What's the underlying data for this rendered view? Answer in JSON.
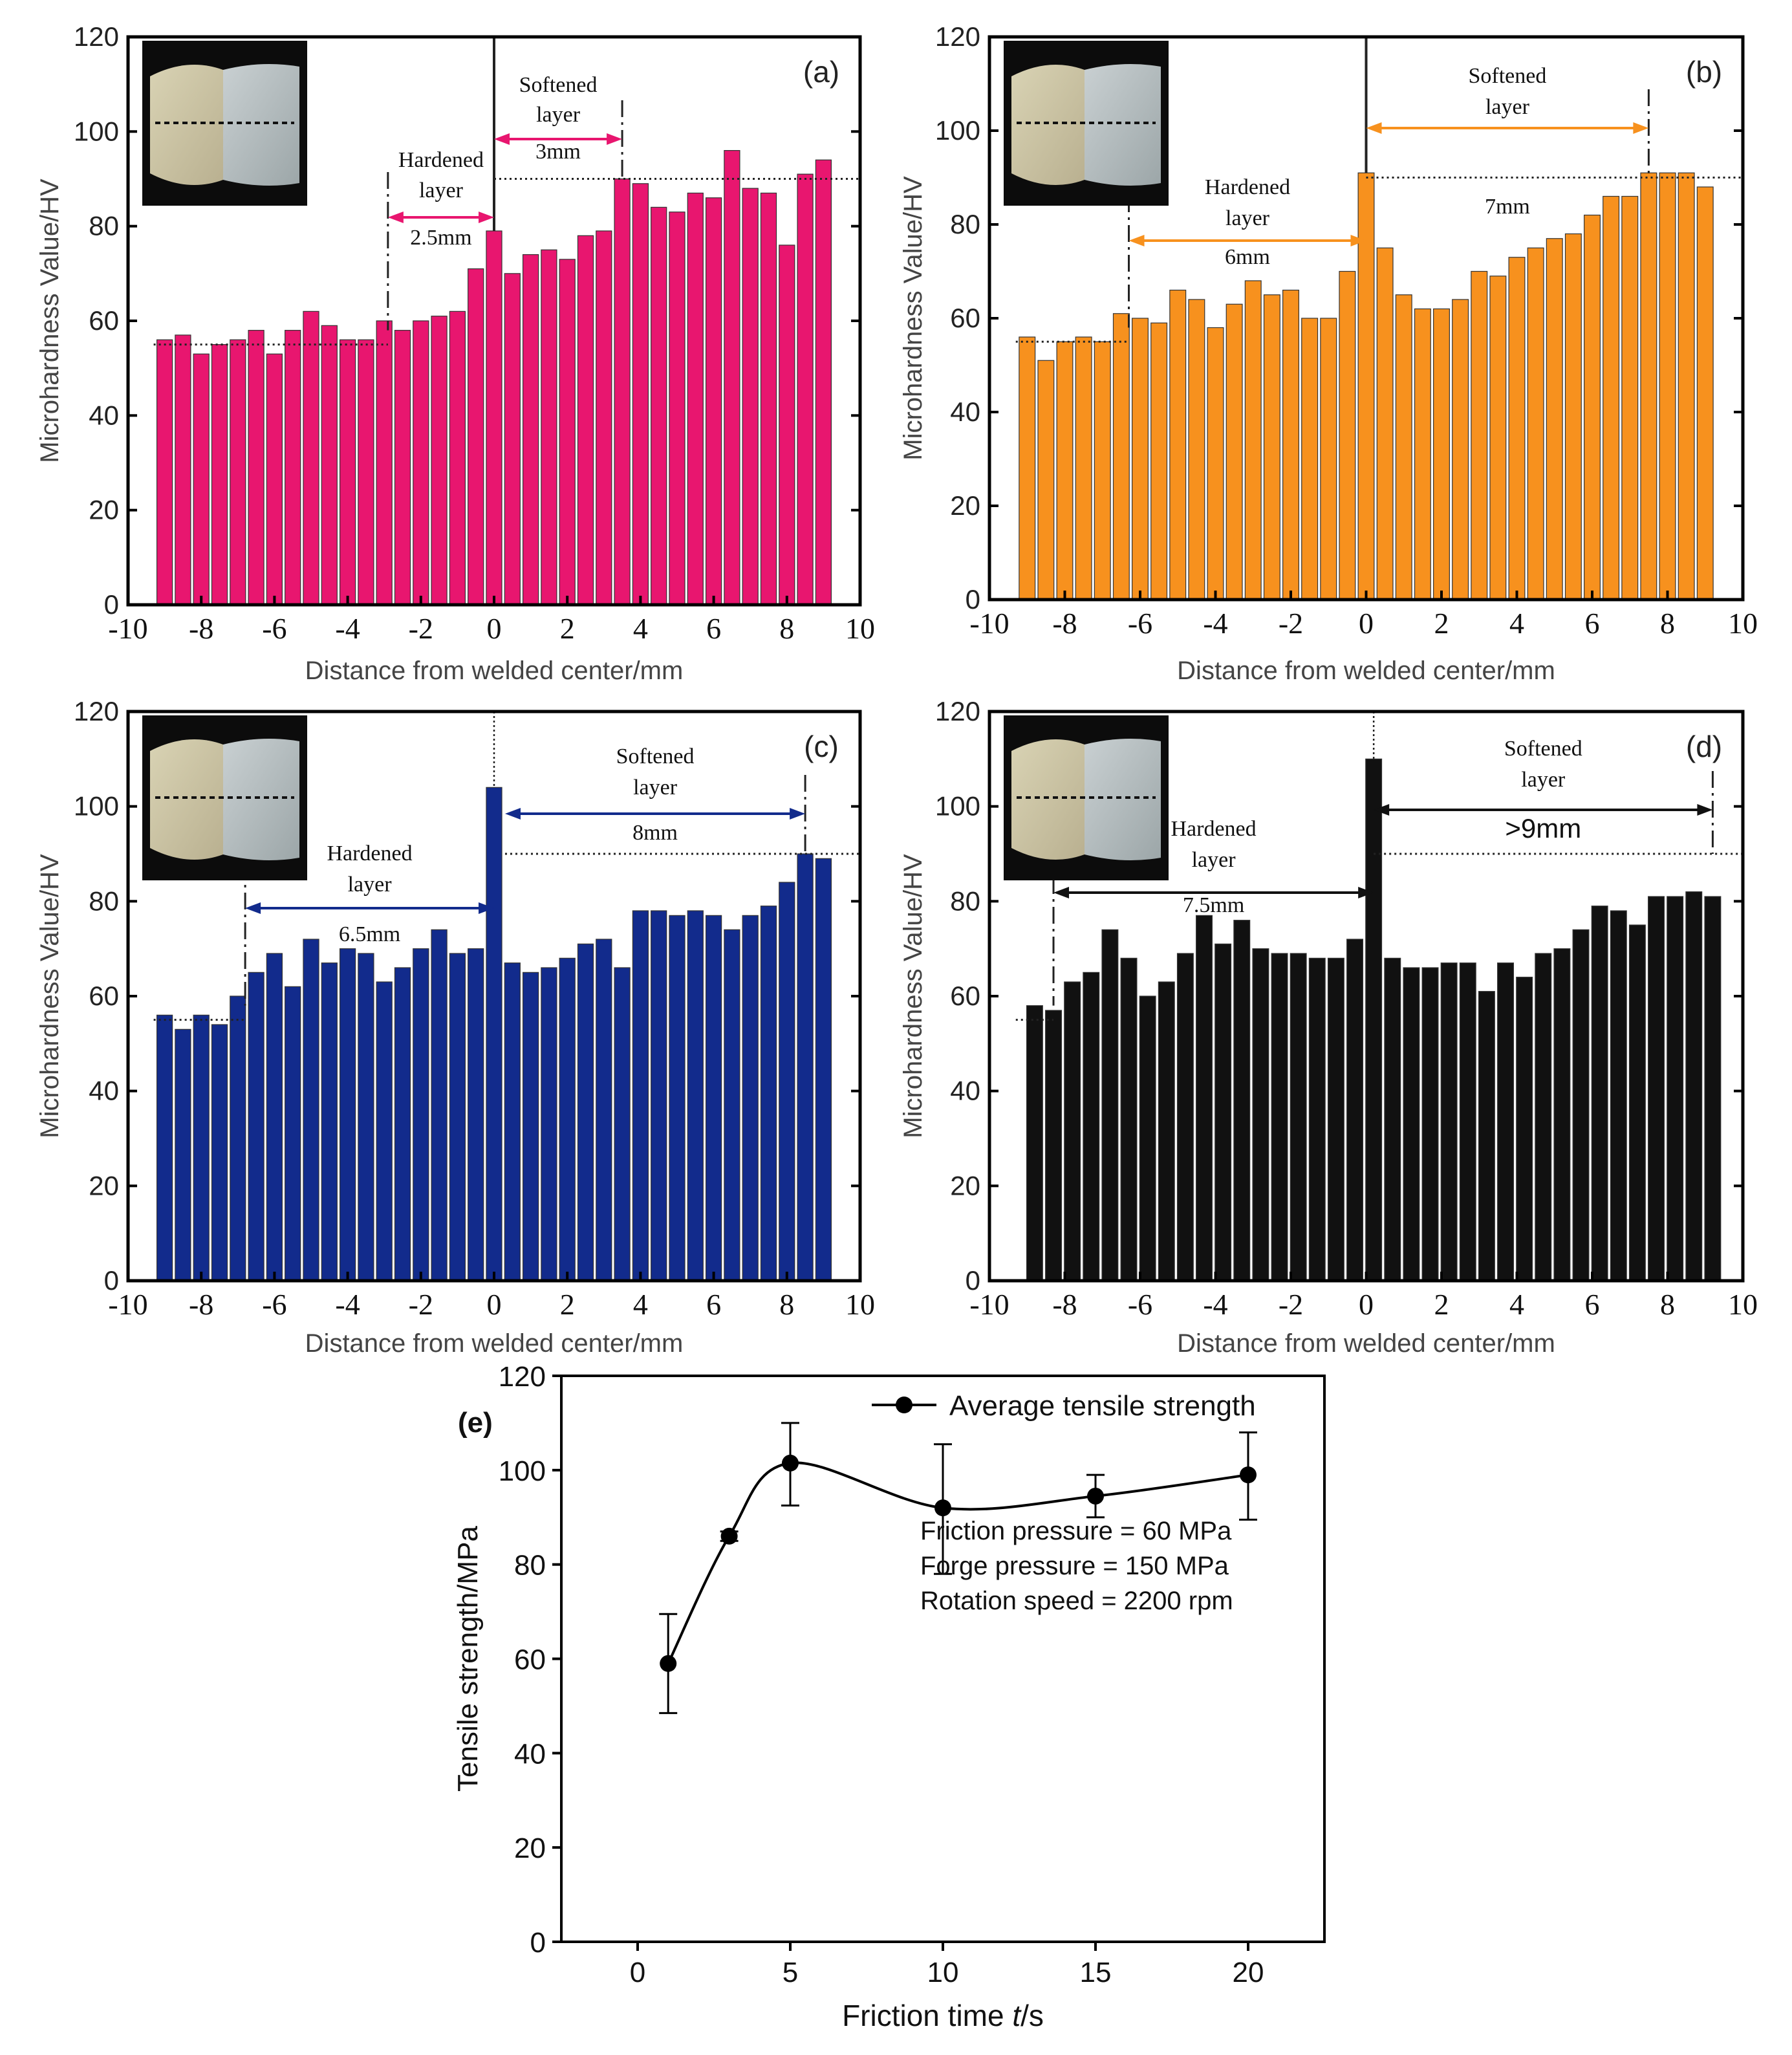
{
  "chart_data": [
    {
      "id": "a",
      "type": "bar",
      "panel_label": "(a)",
      "color": "#e8166f",
      "xlabel": "Distance from welded center/mm",
      "ylabel": "Microhardness Value/HV",
      "xlim": [
        -10,
        10
      ],
      "ylim": [
        0,
        120
      ],
      "xticks": [
        "-10",
        "-8",
        "-6",
        "-4",
        "-2",
        "0",
        "2",
        "4",
        "6",
        "8",
        "10"
      ],
      "yticks": [
        "0",
        "20",
        "40",
        "60",
        "80",
        "100",
        "120"
      ],
      "x": [
        -9,
        -8.5,
        -8,
        -7.5,
        -7,
        -6.5,
        -6,
        -5.5,
        -5,
        -4.5,
        -4,
        -3.5,
        -3,
        -2.5,
        -2,
        -1.5,
        -1,
        -0.5,
        0,
        0.5,
        1,
        1.5,
        2,
        2.5,
        3,
        3.5,
        4,
        4.5,
        5,
        5.5,
        6,
        6.5,
        7,
        7.5,
        8,
        8.5,
        9
      ],
      "values": [
        56,
        57,
        53,
        55,
        56,
        58,
        53,
        58,
        62,
        59,
        56,
        56,
        60,
        58,
        60,
        61,
        62,
        71,
        79,
        70,
        74,
        75,
        73,
        78,
        79,
        90,
        89,
        84,
        83,
        87,
        86,
        96,
        88,
        87,
        76,
        91,
        94
      ],
      "base_line": 55,
      "top_line": 90,
      "hardened": {
        "label1": "Hardened",
        "label2": "layer",
        "width_label": "2.5mm",
        "from": -2.9,
        "to": 0
      },
      "softened": {
        "label1": "Softened",
        "label2": "layer",
        "width_label": "3mm",
        "from": 0,
        "to": 3.5
      }
    },
    {
      "id": "b",
      "type": "bar",
      "panel_label": "(b)",
      "color": "#f7911e",
      "xlabel": "Distance from welded center/mm",
      "ylabel": "Microhardness Value/HV",
      "xlim": [
        -10,
        10
      ],
      "ylim": [
        0,
        120
      ],
      "xticks": [
        "-10",
        "-8",
        "-6",
        "-4",
        "-2",
        "0",
        "2",
        "4",
        "6",
        "8",
        "10"
      ],
      "yticks": [
        "0",
        "20",
        "40",
        "60",
        "80",
        "100",
        "120"
      ],
      "x": [
        -9,
        -8.5,
        -8,
        -7.5,
        -7,
        -6.5,
        -6,
        -5.5,
        -5,
        -4.5,
        -4,
        -3.5,
        -3,
        -2.5,
        -2,
        -1.5,
        -1,
        -0.5,
        0,
        0.5,
        1,
        1.5,
        2,
        2.5,
        3,
        3.5,
        4,
        4.5,
        5,
        5.5,
        6,
        6.5,
        7,
        7.5,
        8,
        8.5,
        9
      ],
      "values": [
        56,
        51,
        55,
        56,
        55,
        61,
        60,
        59,
        66,
        64,
        58,
        63,
        68,
        65,
        66,
        60,
        60,
        70,
        91,
        75,
        65,
        62,
        62,
        64,
        70,
        69,
        73,
        75,
        77,
        78,
        82,
        86,
        86,
        91,
        91,
        91,
        88
      ],
      "base_line": 55,
      "top_line": 90,
      "hardened": {
        "label1": "Hardened",
        "label2": "layer",
        "width_label": "6mm",
        "from": -6.3,
        "to": 0
      },
      "softened": {
        "label1": "Softened",
        "label2": "layer",
        "width_label": "7mm",
        "from": 0,
        "to": 7.5
      }
    },
    {
      "id": "c",
      "type": "bar",
      "panel_label": "(c)",
      "color": "#122b8c",
      "xlabel": "Distance from welded center/mm",
      "ylabel": "Microhardness Value/HV",
      "xlim": [
        -10,
        10
      ],
      "ylim": [
        0,
        120
      ],
      "xticks": [
        "-10",
        "-8",
        "-6",
        "-4",
        "-2",
        "0",
        "2",
        "4",
        "6",
        "8",
        "10"
      ],
      "yticks": [
        "0",
        "20",
        "40",
        "60",
        "80",
        "100",
        "120"
      ],
      "x": [
        -9,
        -8.5,
        -8,
        -7.5,
        -7,
        -6.5,
        -6,
        -5.5,
        -5,
        -4.5,
        -4,
        -3.5,
        -3,
        -2.5,
        -2,
        -1.5,
        -1,
        -0.5,
        0,
        0.5,
        1,
        1.5,
        2,
        2.5,
        3,
        3.5,
        4,
        4.5,
        5,
        5.5,
        6,
        6.5,
        7,
        7.5,
        8,
        8.5,
        9
      ],
      "values": [
        56,
        53,
        56,
        54,
        60,
        65,
        69,
        62,
        72,
        67,
        70,
        69,
        63,
        66,
        70,
        74,
        69,
        70,
        104,
        67,
        65,
        66,
        68,
        71,
        72,
        66,
        78,
        78,
        77,
        78,
        77,
        74,
        77,
        79,
        84,
        90,
        89
      ],
      "base_line": 55,
      "top_line": 90,
      "hardened": {
        "label1": "Hardened",
        "label2": "layer",
        "width_label": "6.5mm",
        "from": -6.8,
        "to": 0
      },
      "softened": {
        "label1": "Softened",
        "label2": "layer",
        "width_label": "8mm",
        "from": 0.3,
        "to": 8.5
      }
    },
    {
      "id": "d",
      "type": "bar",
      "panel_label": "(d)",
      "color": "#111111",
      "xlabel": "Distance from welded center/mm",
      "ylabel": "Microhardness Value/HV",
      "xlim": [
        -10,
        10
      ],
      "ylim": [
        0,
        120
      ],
      "xticks": [
        "-10",
        "-8",
        "-6",
        "-4",
        "-2",
        "0",
        "2",
        "4",
        "6",
        "8",
        "10"
      ],
      "yticks": [
        "0",
        "20",
        "40",
        "60",
        "80",
        "100",
        "120"
      ],
      "x": [
        -8.8,
        -8.3,
        -7.8,
        -7.3,
        -6.8,
        -6.3,
        -5.8,
        -5.3,
        -4.8,
        -4.3,
        -3.8,
        -3.3,
        -2.8,
        -2.3,
        -1.8,
        -1.3,
        -0.8,
        -0.3,
        0.2,
        0.7,
        1.2,
        1.7,
        2.2,
        2.7,
        3.2,
        3.7,
        4.2,
        4.7,
        5.2,
        5.7,
        6.2,
        6.7,
        7.2,
        7.7,
        8.2,
        8.7,
        9.2
      ],
      "values": [
        58,
        57,
        63,
        65,
        74,
        68,
        60,
        63,
        69,
        77,
        71,
        76,
        70,
        69,
        69,
        68,
        68,
        72,
        110,
        68,
        66,
        66,
        67,
        67,
        61,
        67,
        64,
        69,
        70,
        74,
        79,
        78,
        75,
        81,
        81,
        82,
        81
      ],
      "base_line": 55,
      "top_line": 90,
      "hardened": {
        "label1": "Hardened",
        "label2": "layer",
        "width_label": "7.5mm",
        "from": -8.3,
        "to": 0.2
      },
      "softened": {
        "label1": "Softened",
        "label2": "layer",
        "width_label": ">9mm",
        "from": 0.2,
        "to": 9.2
      }
    },
    {
      "id": "e",
      "type": "line",
      "panel_label": "(e)",
      "xlabel_prefix": "Friction time ",
      "xlabel_var": "t",
      "xlabel_suffix": "/s",
      "ylabel": "Tensile strength/MPa",
      "xlim": [
        -2.5,
        22.5
      ],
      "ylim": [
        0,
        120
      ],
      "xticks": [
        "0",
        "5",
        "10",
        "15",
        "20"
      ],
      "yticks": [
        "0",
        "20",
        "40",
        "60",
        "80",
        "100",
        "120"
      ],
      "series": [
        {
          "name": "Average tensile strength",
          "x": [
            1,
            3,
            5,
            10,
            15,
            20
          ],
          "values": [
            59,
            86,
            101.5,
            92,
            94.5,
            99
          ],
          "err_low": [
            48.5,
            85,
            92.5,
            78,
            90,
            89.5
          ],
          "err_high": [
            69.5,
            87,
            110,
            105.5,
            99,
            108
          ]
        }
      ],
      "notes": [
        "Friction pressure = 60 MPa",
        "Forge pressure = 150 MPa",
        "Rotation speed = 2200 rpm"
      ]
    }
  ]
}
